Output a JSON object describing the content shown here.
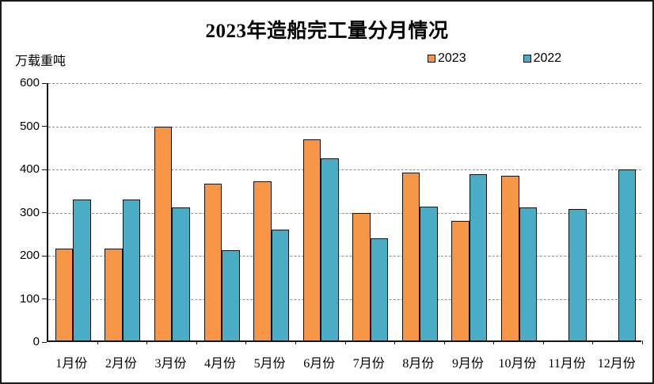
{
  "title": "2023年造船完工量分月情况",
  "y_axis_unit": "万载重吨",
  "legend": [
    {
      "label": "2023",
      "color": "#F79646"
    },
    {
      "label": "2022",
      "color": "#4BACC6"
    }
  ],
  "colors": {
    "series_2023": "#F79646",
    "series_2022": "#4BACC6",
    "bar_outline": "#111111",
    "gridline": "#8c8c8c",
    "axis": "#161616"
  },
  "chart_data": {
    "type": "bar",
    "title": "2023年造船完工量分月情况",
    "xlabel": "",
    "ylabel": "万载重吨",
    "categories": [
      "1月份",
      "2月份",
      "3月份",
      "4月份",
      "5月份",
      "6月份",
      "7月份",
      "8月份",
      "9月份",
      "10月份",
      "11月份",
      "12月份"
    ],
    "series": [
      {
        "name": "2023",
        "color": "#F79646",
        "values": [
          212,
          212,
          495,
          363,
          368,
          466,
          296,
          389,
          277,
          381,
          null,
          null
        ]
      },
      {
        "name": "2022",
        "color": "#4BACC6",
        "values": [
          326,
          327,
          309,
          210,
          257,
          422,
          236,
          310,
          386,
          309,
          304,
          397
        ]
      }
    ],
    "ylim": [
      0,
      600
    ],
    "ytick_interval": 100,
    "yticks": [
      0,
      100,
      200,
      300,
      400,
      500,
      600
    ],
    "grid": "horizontal-dashed",
    "legend_position": "top"
  }
}
